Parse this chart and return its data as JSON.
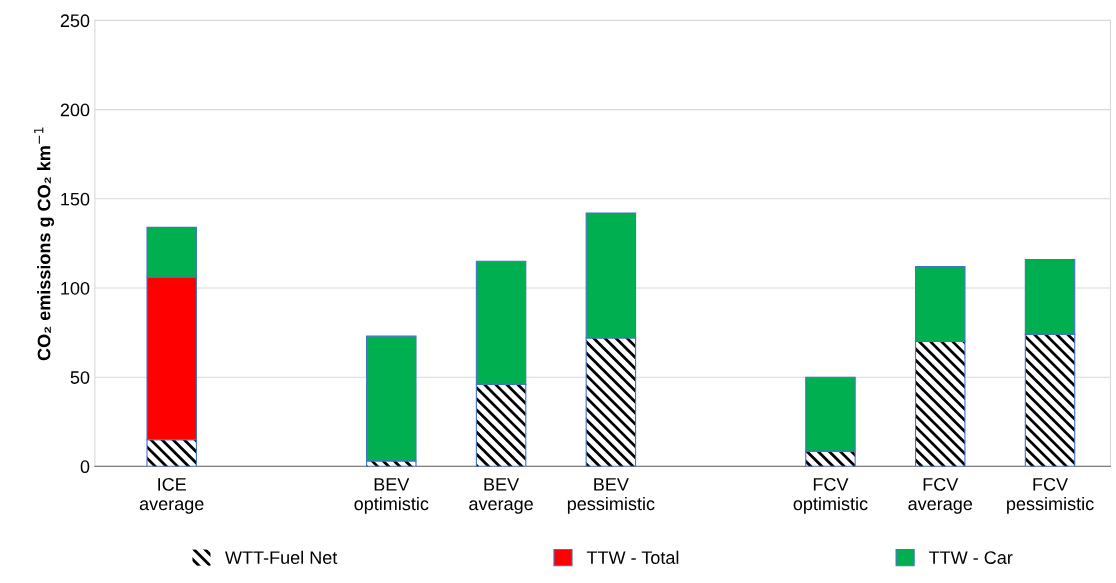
{
  "chart_data": {
    "type": "bar",
    "stacked": true,
    "ylabel": "CO₂ emissions g CO₂ km$^{−1}$",
    "categories": [
      "ICE\naverage",
      null,
      "BEV\noptimistic",
      "BEV\naverage",
      "BEV\npessimistic",
      null,
      "FCV\noptimistic",
      "FCV\naverage",
      "FCV\npessimistic"
    ],
    "series": [
      {
        "name": "WTT-Fuel Net",
        "color": "#000000",
        "values": [
          15,
          null,
          3,
          46,
          72,
          null,
          8.5,
          70,
          74
        ]
      },
      {
        "name": "TTW - Total",
        "color": "#ff0000",
        "values": [
          91,
          null,
          null,
          null,
          null,
          null,
          null,
          null,
          null
        ]
      },
      {
        "name": "TTW - Car",
        "color": "#00b050",
        "values": [
          28,
          null,
          70,
          69,
          70,
          null,
          41.5,
          42,
          42
        ]
      }
    ],
    "ylim": [
      0,
      250
    ],
    "yticks": [
      0,
      50,
      100,
      150,
      200,
      250
    ],
    "grid": "y",
    "legend": "bottom"
  }
}
